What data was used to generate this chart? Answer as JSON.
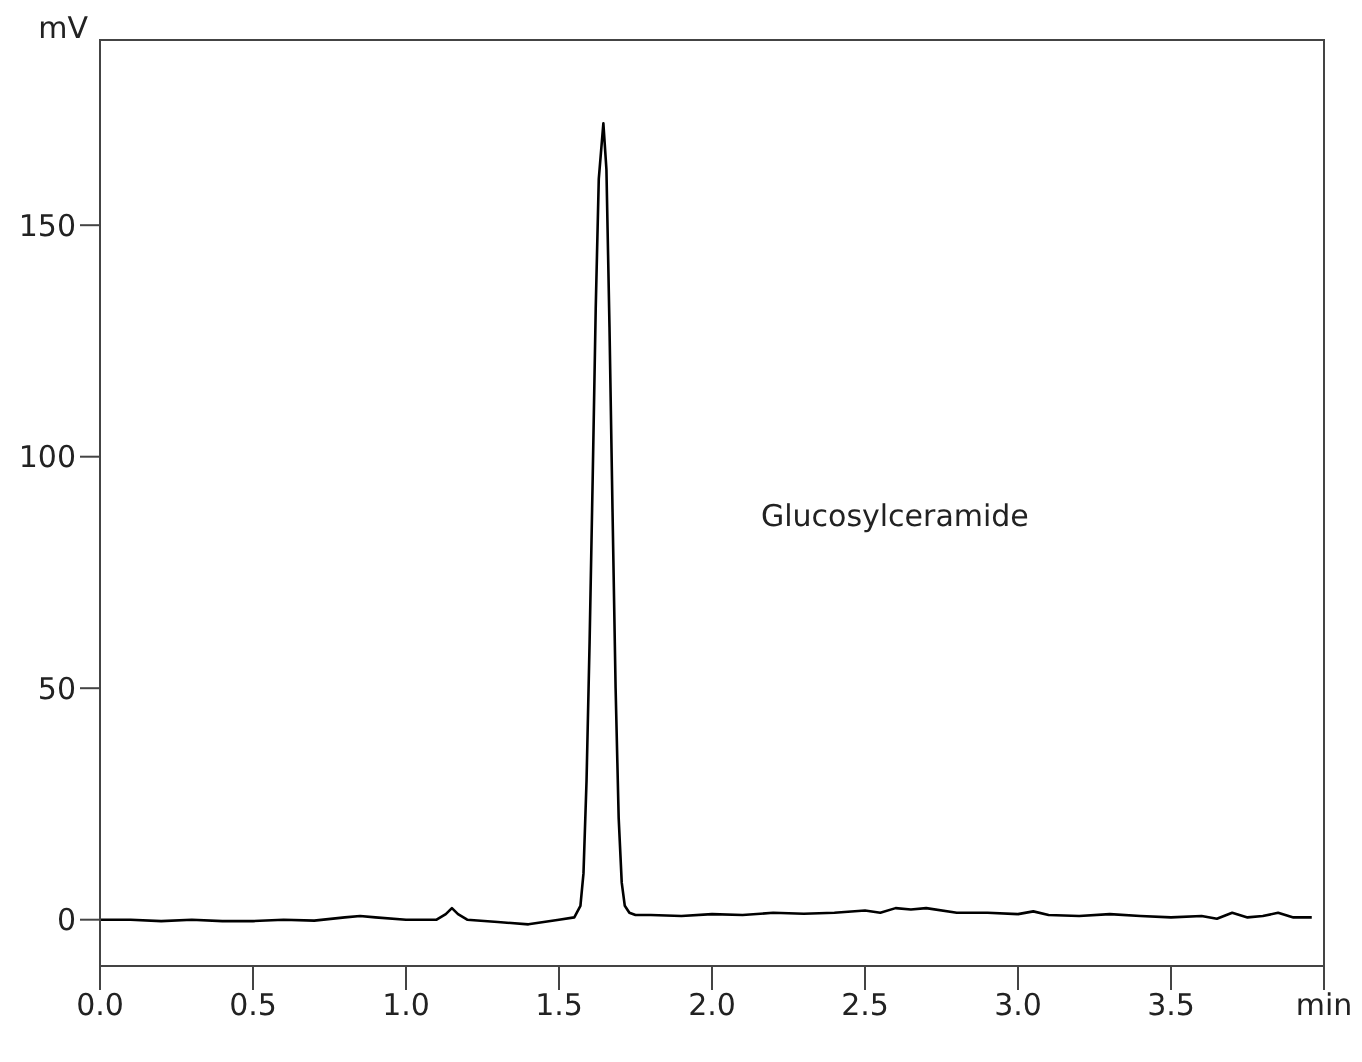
{
  "chart_data": {
    "type": "line",
    "ylabel": "mV",
    "annotations": [
      "Glucosylceramide"
    ],
    "x": [
      0,
      0.1,
      0.2,
      0.3,
      0.4,
      0.5,
      0.6,
      0.7,
      0.8,
      0.85,
      0.9,
      1.0,
      1.1,
      1.13,
      1.15,
      1.17,
      1.2,
      1.3,
      1.4,
      1.5,
      1.55,
      1.57,
      1.58,
      1.59,
      1.6,
      1.61,
      1.62,
      1.63,
      1.645,
      1.655,
      1.665,
      1.675,
      1.685,
      1.695,
      1.705,
      1.715,
      1.73,
      1.75,
      1.8,
      1.9,
      2.0,
      2.1,
      2.2,
      2.3,
      2.4,
      2.5,
      2.55,
      2.6,
      2.65,
      2.7,
      2.8,
      2.9,
      3.0,
      3.05,
      3.1,
      3.2,
      3.3,
      3.4,
      3.5,
      3.6,
      3.65,
      3.7,
      3.75,
      3.8,
      3.85,
      3.9,
      3.96
    ],
    "series": [
      {
        "color": "#000000",
        "values": [
          0,
          0,
          -0.3,
          0,
          -0.3,
          -0.3,
          0,
          -0.2,
          0.5,
          0.8,
          0.5,
          0,
          0,
          1.2,
          2.5,
          1.2,
          0,
          -0.5,
          -1,
          0,
          0.5,
          3,
          10,
          30,
          60,
          95,
          132,
          160,
          172,
          162,
          128,
          88,
          50,
          22,
          8,
          3,
          1.5,
          1,
          1,
          0.8,
          1.2,
          1,
          1.5,
          1.3,
          1.5,
          2,
          1.5,
          2.5,
          2.2,
          2.5,
          1.5,
          1.5,
          1.2,
          1.8,
          1,
          0.8,
          1.2,
          0.8,
          0.5,
          0.8,
          0.2,
          1.5,
          0.5,
          0.8,
          1.5,
          0.5,
          0.5
        ]
      }
    ],
    "xlim": [
      0,
      4
    ],
    "xticks": [
      {
        "value": 0,
        "label": "0.0"
      },
      {
        "value": 0.5,
        "label": "0.5"
      },
      {
        "value": 1,
        "label": "1.0"
      },
      {
        "value": 1.5,
        "label": "1.5"
      },
      {
        "value": 2,
        "label": "2.0"
      },
      {
        "value": 2.5,
        "label": "2.5"
      },
      {
        "value": 3,
        "label": "3.0"
      },
      {
        "value": 3.5,
        "label": "3.5"
      },
      {
        "value": 4,
        "label": "min"
      }
    ],
    "ylim": [
      -10,
      190
    ],
    "yticks": [
      0,
      50,
      100,
      150
    ],
    "grid": false,
    "marker": "none",
    "line_style": "solid"
  }
}
